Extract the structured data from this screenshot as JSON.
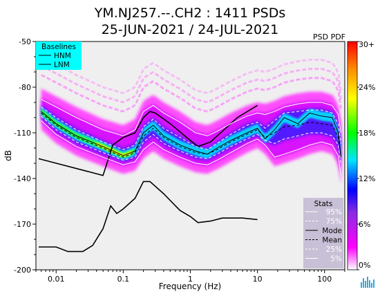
{
  "chart_data": {
    "type": "heatmap",
    "title_line1": "YM.NJ257.--.CH2 : 1411 PSDs",
    "title_line2": "25-JUN-2021 / 24-JUL-2021",
    "subtitle": "PSD PDF",
    "xlabel": "Frequency (Hz)",
    "ylabel": "dB",
    "x_scale": "log",
    "xlim": [
      0.005,
      200
    ],
    "ylim": [
      -200,
      -50
    ],
    "x_ticks": [
      {
        "value": 0.01,
        "label": "0.01"
      },
      {
        "value": 0.1,
        "label": "0.1"
      },
      {
        "value": 1,
        "label": "1"
      },
      {
        "value": 10,
        "label": "10"
      },
      {
        "value": 100,
        "label": "100"
      }
    ],
    "y_ticks": [
      {
        "value": -50,
        "label": "-50"
      },
      {
        "value": -80,
        "label": "-80"
      },
      {
        "value": -110,
        "label": "-110"
      },
      {
        "value": -140,
        "label": "-140"
      },
      {
        "value": -170,
        "label": "-170"
      },
      {
        "value": -200,
        "label": "-200"
      }
    ],
    "colorbar": {
      "labels": [
        "30+",
        "24%",
        "18%",
        "12%",
        "6%",
        "0%"
      ],
      "colors": [
        "#ff0000",
        "#ff8c00",
        "#ffff00",
        "#00ff00",
        "#00e5ff",
        "#0000ff",
        "#8a2be2",
        "#ff00ff",
        "#ffffff"
      ]
    },
    "baselines_legend": {
      "title": "Baselines",
      "entries": [
        "HNM",
        "LNM"
      ],
      "background": "#00ffff"
    },
    "stats_legend": {
      "title": "Stats",
      "entries": [
        {
          "label": "95%",
          "style": "solid-white"
        },
        {
          "label": "75%",
          "style": "dashed-white"
        },
        {
          "label": "Mode",
          "style": "solid-black"
        },
        {
          "label": "Mean",
          "style": "dashed-black"
        },
        {
          "label": "25%",
          "style": "dashed-white"
        },
        {
          "label": "5%",
          "style": "solid-white"
        }
      ]
    },
    "series": [
      {
        "name": "HNM",
        "points": [
          [
            0.0055,
            -127
          ],
          [
            0.05,
            -138
          ],
          [
            0.07,
            -118
          ],
          [
            0.1,
            -113
          ],
          [
            0.15,
            -110
          ],
          [
            0.2,
            -100
          ],
          [
            0.25,
            -96
          ],
          [
            0.3,
            -97
          ],
          [
            0.5,
            -104
          ],
          [
            1,
            -115
          ],
          [
            1.3,
            -119
          ],
          [
            2,
            -116
          ],
          [
            3,
            -109
          ],
          [
            5,
            -100
          ],
          [
            10,
            -92
          ]
        ]
      },
      {
        "name": "LNM",
        "points": [
          [
            0.0055,
            -185
          ],
          [
            0.01,
            -185
          ],
          [
            0.015,
            -188
          ],
          [
            0.025,
            -188
          ],
          [
            0.035,
            -184
          ],
          [
            0.05,
            -173
          ],
          [
            0.065,
            -158
          ],
          [
            0.08,
            -163
          ],
          [
            0.1,
            -160
          ],
          [
            0.15,
            -153
          ],
          [
            0.2,
            -142
          ],
          [
            0.25,
            -142
          ],
          [
            0.4,
            -150
          ],
          [
            0.7,
            -161
          ],
          [
            1,
            -165
          ],
          [
            1.3,
            -169
          ],
          [
            2,
            -168
          ],
          [
            3,
            -166
          ],
          [
            6,
            -166
          ],
          [
            10,
            -167
          ]
        ]
      },
      {
        "name": "Mode",
        "points": [
          [
            0.006,
            -96
          ],
          [
            0.01,
            -104
          ],
          [
            0.02,
            -112
          ],
          [
            0.05,
            -119
          ],
          [
            0.1,
            -125
          ],
          [
            0.15,
            -122
          ],
          [
            0.2,
            -110
          ],
          [
            0.28,
            -105
          ],
          [
            0.4,
            -112
          ],
          [
            0.7,
            -118
          ],
          [
            1.2,
            -122
          ],
          [
            1.8,
            -124
          ],
          [
            2.5,
            -120
          ],
          [
            4,
            -115
          ],
          [
            7,
            -110
          ],
          [
            10,
            -107
          ],
          [
            13,
            -114
          ],
          [
            18,
            -108
          ],
          [
            25,
            -100
          ],
          [
            40,
            -104
          ],
          [
            60,
            -97
          ],
          [
            90,
            -99
          ],
          [
            130,
            -100
          ],
          [
            160,
            -110
          ],
          [
            175,
            -125
          ]
        ]
      },
      {
        "name": "Mean",
        "points": [
          [
            0.006,
            -97
          ],
          [
            0.01,
            -105
          ],
          [
            0.02,
            -113
          ],
          [
            0.05,
            -120
          ],
          [
            0.1,
            -126
          ],
          [
            0.15,
            -123
          ],
          [
            0.2,
            -112
          ],
          [
            0.28,
            -107
          ],
          [
            0.4,
            -113
          ],
          [
            0.7,
            -119
          ],
          [
            1.2,
            -123
          ],
          [
            1.8,
            -124
          ],
          [
            2.5,
            -121
          ],
          [
            4,
            -116
          ],
          [
            7,
            -111
          ],
          [
            10,
            -108
          ],
          [
            13,
            -113
          ],
          [
            18,
            -110
          ],
          [
            25,
            -106
          ],
          [
            40,
            -105
          ],
          [
            60,
            -103
          ],
          [
            90,
            -104
          ],
          [
            130,
            -105
          ],
          [
            160,
            -113
          ],
          [
            175,
            -126
          ]
        ]
      },
      {
        "name": "95%",
        "points": [
          [
            0.006,
            -88
          ],
          [
            0.01,
            -93
          ],
          [
            0.02,
            -100
          ],
          [
            0.05,
            -108
          ],
          [
            0.1,
            -112
          ],
          [
            0.15,
            -108
          ],
          [
            0.2,
            -96
          ],
          [
            0.28,
            -92
          ],
          [
            0.4,
            -97
          ],
          [
            0.7,
            -103
          ],
          [
            1.2,
            -110
          ],
          [
            1.8,
            -112
          ],
          [
            2.5,
            -109
          ],
          [
            4,
            -104
          ],
          [
            7,
            -99
          ],
          [
            10,
            -97
          ],
          [
            13,
            -98
          ],
          [
            18,
            -96
          ],
          [
            25,
            -93
          ],
          [
            40,
            -91
          ],
          [
            60,
            -90
          ],
          [
            90,
            -90
          ],
          [
            130,
            -92
          ],
          [
            160,
            -98
          ],
          [
            175,
            -110
          ]
        ]
      },
      {
        "name": "75%",
        "points": [
          [
            0.006,
            -93
          ],
          [
            0.01,
            -100
          ],
          [
            0.02,
            -108
          ],
          [
            0.05,
            -116
          ],
          [
            0.1,
            -121
          ],
          [
            0.15,
            -118
          ],
          [
            0.2,
            -106
          ],
          [
            0.28,
            -101
          ],
          [
            0.4,
            -107
          ],
          [
            0.7,
            -113
          ],
          [
            1.2,
            -119
          ],
          [
            1.8,
            -121
          ],
          [
            2.5,
            -117
          ],
          [
            4,
            -111
          ],
          [
            7,
            -105
          ],
          [
            10,
            -103
          ],
          [
            13,
            -107
          ],
          [
            18,
            -102
          ],
          [
            25,
            -97
          ],
          [
            40,
            -96
          ],
          [
            60,
            -95
          ],
          [
            90,
            -95
          ],
          [
            130,
            -97
          ],
          [
            160,
            -104
          ],
          [
            175,
            -117
          ]
        ]
      },
      {
        "name": "25%",
        "points": [
          [
            0.006,
            -99
          ],
          [
            0.01,
            -108
          ],
          [
            0.02,
            -116
          ],
          [
            0.05,
            -123
          ],
          [
            0.1,
            -128
          ],
          [
            0.15,
            -126
          ],
          [
            0.2,
            -116
          ],
          [
            0.28,
            -111
          ],
          [
            0.4,
            -117
          ],
          [
            0.7,
            -122
          ],
          [
            1.2,
            -126
          ],
          [
            1.8,
            -127
          ],
          [
            2.5,
            -124
          ],
          [
            4,
            -119
          ],
          [
            7,
            -114
          ],
          [
            10,
            -111
          ],
          [
            13,
            -115
          ],
          [
            18,
            -117
          ],
          [
            25,
            -114
          ],
          [
            40,
            -112
          ],
          [
            60,
            -110
          ],
          [
            90,
            -110
          ],
          [
            130,
            -112
          ],
          [
            160,
            -118
          ],
          [
            175,
            -130
          ]
        ]
      },
      {
        "name": "5%",
        "points": [
          [
            0.006,
            -102
          ],
          [
            0.01,
            -111
          ],
          [
            0.02,
            -119
          ],
          [
            0.05,
            -126
          ],
          [
            0.1,
            -131
          ],
          [
            0.15,
            -129
          ],
          [
            0.2,
            -121
          ],
          [
            0.28,
            -116
          ],
          [
            0.4,
            -121
          ],
          [
            0.7,
            -126
          ],
          [
            1.2,
            -130
          ],
          [
            1.8,
            -131
          ],
          [
            2.5,
            -128
          ],
          [
            4,
            -123
          ],
          [
            7,
            -117
          ],
          [
            10,
            -114
          ],
          [
            13,
            -118
          ],
          [
            18,
            -126
          ],
          [
            25,
            -124
          ],
          [
            40,
            -121
          ],
          [
            60,
            -118
          ],
          [
            90,
            -116
          ],
          [
            130,
            -118
          ],
          [
            160,
            -125
          ],
          [
            175,
            -138
          ]
        ]
      }
    ]
  }
}
